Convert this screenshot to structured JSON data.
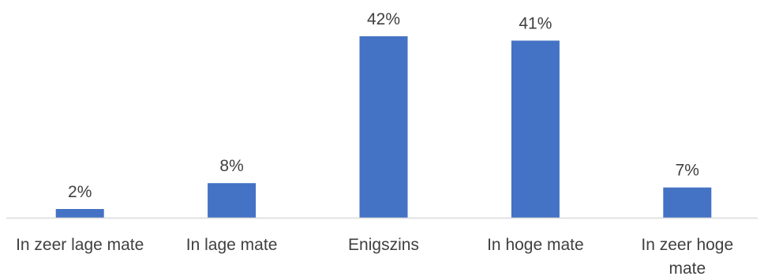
{
  "chart_data": {
    "type": "bar",
    "title": "",
    "xlabel": "",
    "ylabel": "",
    "categories": [
      [
        "In zeer lage mate"
      ],
      [
        "In lage mate"
      ],
      [
        "Enigszins"
      ],
      [
        "In hoge mate"
      ],
      [
        "In zeer hoge",
        "mate"
      ]
    ],
    "values": [
      2,
      8,
      42,
      41,
      7
    ],
    "labels": [
      "2%",
      "8%",
      "42%",
      "41%",
      "7%"
    ],
    "ylim": [
      0,
      42
    ],
    "grid": false,
    "legend": "none",
    "colors": {
      "bar": "#4472C4",
      "axis": "#D9D9D9",
      "text": "#404040"
    }
  }
}
